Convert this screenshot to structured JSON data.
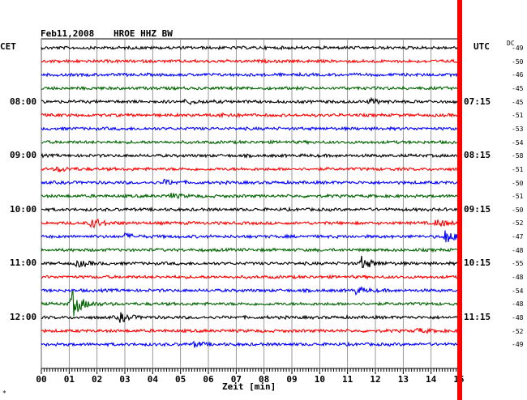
{
  "header": {
    "date": "Feb11,2008",
    "station": "HROE HHZ BW",
    "left_tz": "CET",
    "right_tz": "UTC",
    "dc_label": "DC"
  },
  "xaxis": {
    "label": "Zeit [min]"
  },
  "footer_mark": "*",
  "colors": {
    "black": "#000000",
    "red": "#ff0000",
    "blue": "#0000ff",
    "green": "#006400",
    "marker": "#ff0000"
  },
  "chart_data": {
    "type": "line",
    "title": "Feb11,2008 HROE HHZ BW",
    "xlabel": "Zeit [min]",
    "xlim": [
      0,
      15
    ],
    "x_ticks": [
      "00",
      "01",
      "02",
      "03",
      "04",
      "05",
      "06",
      "07",
      "08",
      "09",
      "10",
      "11",
      "12",
      "13",
      "14",
      "15"
    ],
    "grid": true,
    "trace_color_cycle": [
      "black",
      "red",
      "blue",
      "green"
    ],
    "left_time_labels": [
      {
        "text": "08:00",
        "row": 4
      },
      {
        "text": "09:00",
        "row": 8
      },
      {
        "text": "10:00",
        "row": 12
      },
      {
        "text": "11:00",
        "row": 16
      },
      {
        "text": "12:00",
        "row": 20
      }
    ],
    "right_time_labels": [
      {
        "text": "07:15",
        "row": 4
      },
      {
        "text": "08:15",
        "row": 8
      },
      {
        "text": "09:15",
        "row": 12
      },
      {
        "text": "10:15",
        "row": 16
      },
      {
        "text": "11:15",
        "row": 20
      }
    ],
    "dc_offsets": [
      -49,
      -50,
      -46,
      -45,
      -45,
      -51,
      -53,
      -54,
      -58,
      -51,
      -50,
      -51,
      -50,
      -52,
      -47,
      -48,
      -55,
      -48,
      -54,
      -48,
      -48,
      -52,
      -49
    ],
    "events": [
      {
        "row": 4,
        "minute": 5.2,
        "amplitude": 3
      },
      {
        "row": 4,
        "minute": 11.8,
        "amplitude": 3
      },
      {
        "row": 5,
        "minute": 6.5,
        "amplitude": 3
      },
      {
        "row": 9,
        "minute": 0.6,
        "amplitude": 3
      },
      {
        "row": 10,
        "minute": 4.4,
        "amplitude": 3
      },
      {
        "row": 11,
        "minute": 4.6,
        "amplitude": 3
      },
      {
        "row": 13,
        "minute": 1.8,
        "amplitude": 7
      },
      {
        "row": 13,
        "minute": 14.2,
        "amplitude": 5
      },
      {
        "row": 14,
        "minute": 14.5,
        "amplitude": 9
      },
      {
        "row": 14,
        "minute": 3.0,
        "amplitude": 3
      },
      {
        "row": 16,
        "minute": 1.3,
        "amplitude": 4
      },
      {
        "row": 16,
        "minute": 11.5,
        "amplitude": 8
      },
      {
        "row": 18,
        "minute": 11.3,
        "amplitude": 4
      },
      {
        "row": 19,
        "minute": 1.1,
        "amplitude": 17
      },
      {
        "row": 20,
        "minute": 2.8,
        "amplitude": 6
      },
      {
        "row": 21,
        "minute": 13.5,
        "amplitude": 3
      },
      {
        "row": 22,
        "minute": 5.5,
        "amplitude": 3
      }
    ],
    "current_time_marker_minute": 15
  }
}
